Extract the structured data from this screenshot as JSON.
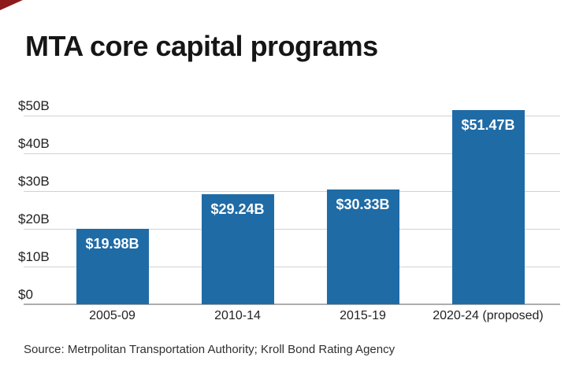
{
  "header": {
    "title": "MTA core capital programs"
  },
  "footer": {
    "source": "Source: Metrpolitan Transportation Authority; Kroll Bond Rating Agency"
  },
  "colors": {
    "bar": "#1f6ba6",
    "gridline": "#d2d2d2",
    "baseline": "#adadad",
    "corner_triangle": "#8e1b1b",
    "value_label_text": "#ffffff",
    "axis_text": "#222222"
  },
  "chart_data": {
    "type": "bar",
    "title": "MTA core capital programs",
    "categories": [
      "2005-09",
      "2010-14",
      "2015-19",
      "2020-24 (proposed)"
    ],
    "values": [
      19.98,
      29.24,
      30.33,
      51.47
    ],
    "value_labels": [
      "$19.98B",
      "$29.24B",
      "$30.33B",
      "$51.47B"
    ],
    "y_ticks": [
      {
        "value": 0,
        "label": "$0"
      },
      {
        "value": 10,
        "label": "$10B"
      },
      {
        "value": 20,
        "label": "$20B"
      },
      {
        "value": 30,
        "label": "$30B"
      },
      {
        "value": 40,
        "label": "$40B"
      },
      {
        "value": 50,
        "label": "$50B"
      }
    ],
    "ylim": [
      0,
      55
    ],
    "xlabel": "",
    "ylabel": "",
    "grid": true,
    "legend": false,
    "source": "Source: Metrpolitan Transportation Authority; Kroll Bond Rating Agency"
  }
}
